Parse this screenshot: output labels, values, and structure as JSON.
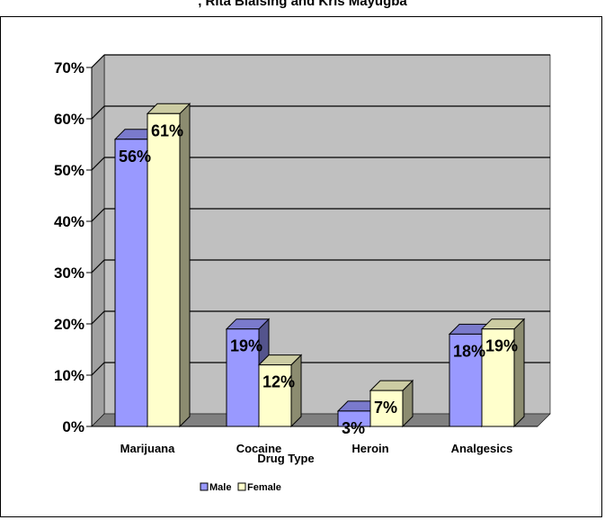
{
  "header": {
    "title": ", Rita Blaising and Kris Mayugba"
  },
  "chart_data": {
    "type": "bar",
    "title": "",
    "xlabel": "Drug Type",
    "ylabel": "",
    "categories": [
      "Marijuana",
      "Cocaine",
      "Heroin",
      "Analgesics"
    ],
    "series": [
      {
        "name": "Male",
        "values": [
          56,
          19,
          3,
          18
        ],
        "labels": [
          "56%",
          "19%",
          "3%",
          "18%"
        ],
        "color": "#9999FF"
      },
      {
        "name": "Female",
        "values": [
          61,
          12,
          7,
          19
        ],
        "labels": [
          "61%",
          "12%",
          "7%",
          "19%"
        ],
        "color": "#FFFFCC"
      }
    ],
    "ylim": [
      0,
      70
    ],
    "yticks": [
      "0%",
      "10%",
      "20%",
      "30%",
      "40%",
      "50%",
      "60%",
      "70%"
    ],
    "grid": true,
    "legend": "bottom",
    "plot_background": "#C0C0C0",
    "three_d": true
  }
}
